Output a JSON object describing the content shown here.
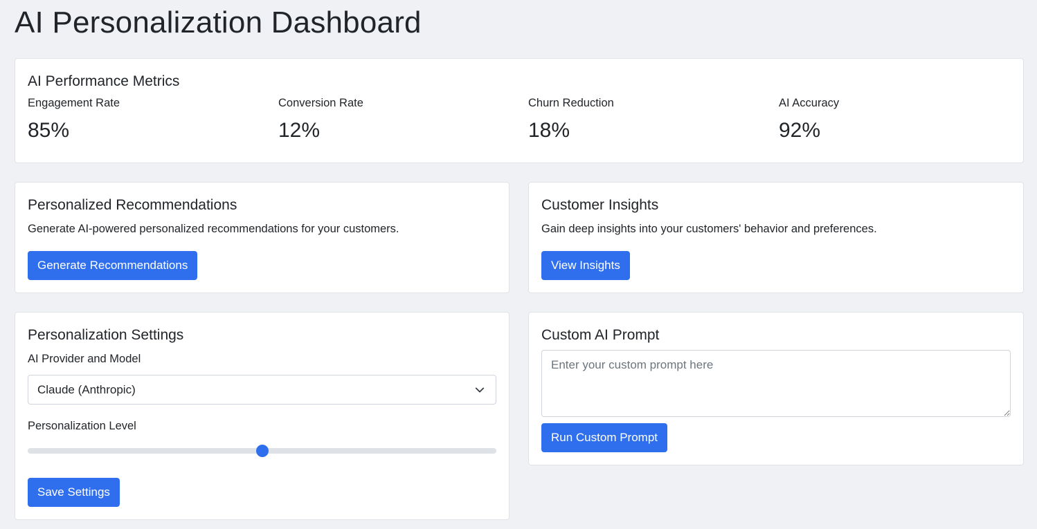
{
  "page": {
    "title": "AI Personalization Dashboard"
  },
  "metrics": {
    "title": "AI Performance Metrics",
    "items": [
      {
        "label": "Engagement Rate",
        "value": "85%"
      },
      {
        "label": "Conversion Rate",
        "value": "12%"
      },
      {
        "label": "Churn Reduction",
        "value": "18%"
      },
      {
        "label": "AI Accuracy",
        "value": "92%"
      }
    ]
  },
  "recommendations": {
    "title": "Personalized Recommendations",
    "description": "Generate AI-powered personalized recommendations for your customers.",
    "button_label": "Generate Recommendations"
  },
  "insights": {
    "title": "Customer Insights",
    "description": "Gain deep insights into your customers' behavior and preferences.",
    "button_label": "View Insights"
  },
  "settings": {
    "title": "Personalization Settings",
    "provider_label": "AI Provider and Model",
    "provider_selected": "Claude (Anthropic)",
    "level_label": "Personalization Level",
    "level_fraction": 0.5,
    "save_label": "Save Settings"
  },
  "prompt": {
    "title": "Custom AI Prompt",
    "placeholder": "Enter your custom prompt here",
    "button_label": "Run Custom Prompt"
  },
  "colors": {
    "accent": "#2f6fed",
    "background": "#f0f1f5",
    "card_border": "#dfe2e6"
  },
  "icons": {
    "select_chevron": "chevron-down-icon",
    "textarea_resize": "resize-handle-icon"
  }
}
